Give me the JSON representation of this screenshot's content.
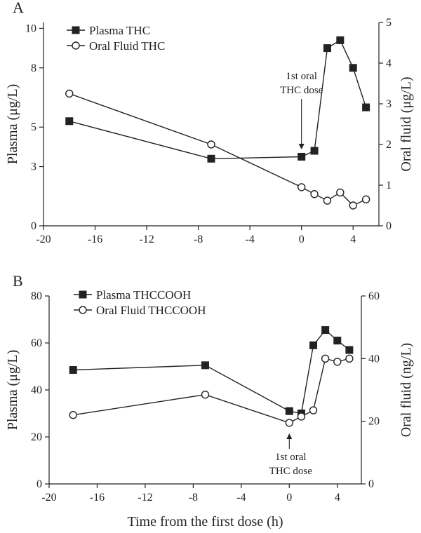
{
  "chart_data": [
    {
      "type": "line",
      "panel_label": "A",
      "xlabel": "",
      "ylabel": "Plasma (μg/L)",
      "y2label": "Oral fluid (μg/L)",
      "xlim": [
        -20,
        6
      ],
      "xticks": [
        -20,
        -16,
        -12,
        -8,
        -4,
        0,
        4
      ],
      "ylim": [
        0,
        10.3
      ],
      "yticks": [
        0,
        3,
        5,
        8,
        10
      ],
      "y2lim": [
        0,
        5
      ],
      "y2ticks": [
        0,
        1,
        2,
        3,
        4,
        5
      ],
      "series": [
        {
          "name": "Plasma THC",
          "axis": "left",
          "marker": "filled-square",
          "x": [
            -18,
            -7,
            0,
            1,
            2,
            3,
            4,
            5
          ],
          "y": [
            5.3,
            3.4,
            3.5,
            3.8,
            9.0,
            9.4,
            8.0,
            6.0
          ]
        },
        {
          "name": "Oral Fluid THC",
          "axis": "right",
          "marker": "open-circle",
          "x": [
            -18,
            -7,
            0,
            1,
            2,
            3,
            4,
            5
          ],
          "y": [
            3.25,
            2.0,
            0.95,
            0.78,
            0.62,
            0.82,
            0.5,
            0.65
          ]
        }
      ],
      "annotation": {
        "lines": [
          "1st oral",
          "THC dose"
        ],
        "x": 0
      }
    },
    {
      "type": "line",
      "panel_label": "B",
      "xlabel": "Time from the first dose (h)",
      "ylabel": "Plasma (μg/L)",
      "y2label": "Oral fluid (ng/L)",
      "xlim": [
        -20,
        6
      ],
      "xticks": [
        -20,
        -16,
        -12,
        -8,
        -4,
        0,
        4
      ],
      "ylim": [
        0,
        80
      ],
      "yticks": [
        0,
        20,
        40,
        60,
        80
      ],
      "y2lim": [
        0,
        60
      ],
      "y2ticks": [
        0,
        20,
        40,
        60
      ],
      "series": [
        {
          "name": "Plasma THCCOOH",
          "axis": "left",
          "marker": "filled-square",
          "x": [
            -18,
            -7,
            0,
            1,
            2,
            3,
            4,
            5
          ],
          "y": [
            48.5,
            50.5,
            31.0,
            30.0,
            59.0,
            65.5,
            61.0,
            57.0
          ]
        },
        {
          "name": "Oral Fluid THCCOOH",
          "axis": "right",
          "marker": "open-circle",
          "x": [
            -18,
            -7,
            0,
            1,
            2,
            3,
            4,
            5
          ],
          "y": [
            22.0,
            28.5,
            19.5,
            21.5,
            23.5,
            40.0,
            39.0,
            40.0
          ]
        }
      ],
      "annotation": {
        "lines": [
          "1st oral",
          "THC dose"
        ],
        "x": 0
      }
    }
  ]
}
